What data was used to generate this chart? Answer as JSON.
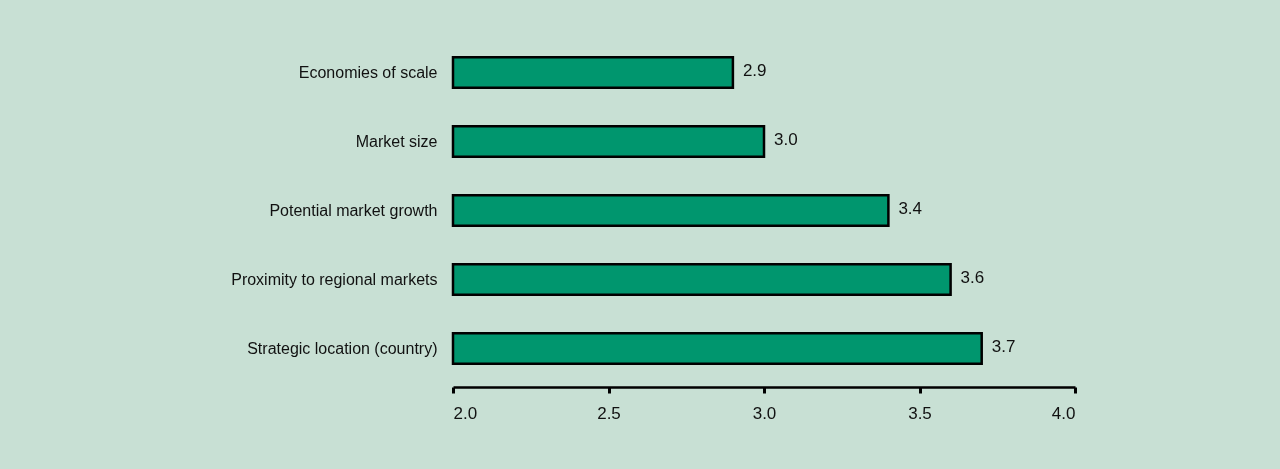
{
  "chart_data": {
    "type": "bar",
    "orientation": "horizontal",
    "categories": [
      "Economies of scale",
      "Market size",
      "Potential market growth",
      "Proximity to regional markets",
      "Strategic location (country)"
    ],
    "values": [
      2.9,
      3.0,
      3.4,
      3.6,
      3.7
    ],
    "value_labels": [
      "2.9",
      "3.0",
      "3.4",
      "3.6",
      "3.7"
    ],
    "color": "#00966e",
    "xlim": [
      2,
      4
    ],
    "xticks": [
      {
        "value": 2,
        "label": "2.0"
      },
      2.5,
      {
        "value": 3,
        "label": "3.0"
      },
      3.5,
      {
        "value": 4,
        "label": "4.0"
      }
    ]
  }
}
